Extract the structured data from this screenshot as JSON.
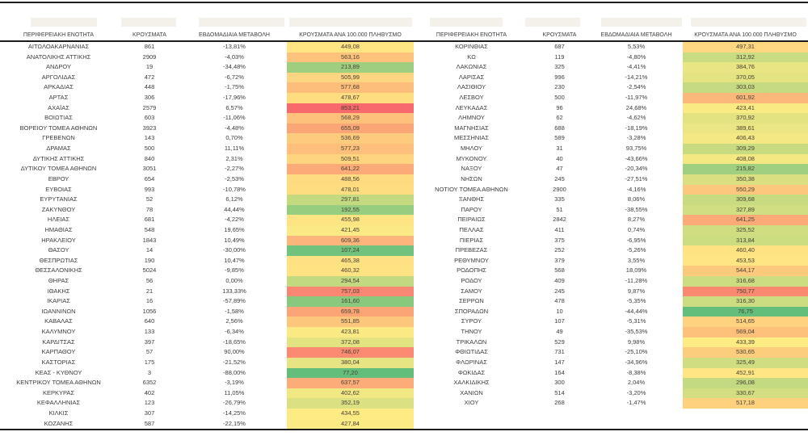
{
  "chart_data": {
    "type": "table",
    "title": "",
    "columns": [
      "ΠΕΡΙΦΕΡΕΙΑΚΗ ΕΝΟΤΗΤΑ",
      "ΚΡΟΥΣΜΑΤΑ",
      "ΕΒΔΟΜΑΔΙΑΙΑ ΜΕΤΑΒΟΛΗ",
      "ΚΡΟΥΣΜΑΤΑ ΑΝΑ 100.000 ΠΛΗΘΥΣΜΟ"
    ],
    "heat_column_index": 3,
    "color_scale": {
      "min_color": "#63BE7B",
      "mid_color": "#FFEB84",
      "max_color": "#F8696B",
      "midpoint_mode": "median"
    },
    "layout": {
      "split_at": 38,
      "two_panels": true,
      "grid": "none",
      "legend": "none"
    },
    "rows": [
      [
        "ΑΙΤΩΛΟΑΚΑΡΝΑΝΙΑΣ",
        "861",
        "-13,81%",
        "449,08"
      ],
      [
        "ΑΝΑΤΟΛΙΚΗΣ ΑΤΤΙΚΗΣ",
        "2909",
        "-4,03%",
        "563,16"
      ],
      [
        "ΑΝΔΡΟΥ",
        "19",
        "-34,48%",
        "213,89"
      ],
      [
        "ΑΡΓΟΛΙΔΑΣ",
        "472",
        "-6,72%",
        "505,99"
      ],
      [
        "ΑΡΚΑΔΙΑΣ",
        "448",
        "-1,75%",
        "577,68"
      ],
      [
        "ΑΡΤΑΣ",
        "306",
        "-17,96%",
        "478,67"
      ],
      [
        "ΑΧΑΪΑΣ",
        "2579",
        "6,57%",
        "853,21"
      ],
      [
        "ΒΟΙΩΤΙΑΣ",
        "603",
        "-11,06%",
        "568,29"
      ],
      [
        "ΒΟΡΕΙΟΥ ΤΟΜΕΑ ΑΘΗΝΩΝ",
        "3923",
        "-4,48%",
        "655,09"
      ],
      [
        "ΓΡΕΒΕΝΩΝ",
        "143",
        "0,70%",
        "536,69"
      ],
      [
        "ΔΡΑΜΑΣ",
        "500",
        "11,11%",
        "577,23"
      ],
      [
        "ΔΥΤΙΚΗΣ ΑΤΤΙΚΗΣ",
        "840",
        "2,31%",
        "509,51"
      ],
      [
        "ΔΥΤΙΚΟΥ ΤΟΜΕΑ ΑΘΗΝΩΝ",
        "3051",
        "-2,27%",
        "641,22"
      ],
      [
        "ΕΒΡΟΥ",
        "654",
        "-2,53%",
        "488,56"
      ],
      [
        "ΕΥΒΟΙΑΣ",
        "993",
        "-10,78%",
        "478,01"
      ],
      [
        "ΕΥΡΥΤΑΝΙΑΣ",
        "52",
        "6,12%",
        "297,81"
      ],
      [
        "ΖΑΚΥΝΘΟΥ",
        "78",
        "44,44%",
        "192,55"
      ],
      [
        "ΗΛΕΙΑΣ",
        "681",
        "-4,22%",
        "455,98"
      ],
      [
        "ΗΜΑΘΙΑΣ",
        "548",
        "19,65%",
        "421,45"
      ],
      [
        "ΗΡΑΚΛΕΙΟΥ",
        "1843",
        "10,49%",
        "609,36"
      ],
      [
        "ΘΑΣΟΥ",
        "14",
        "-30,00%",
        "107,24"
      ],
      [
        "ΘΕΣΠΡΩΤΙΑΣ",
        "190",
        "10,47%",
        "465,38"
      ],
      [
        "ΘΕΣΣΑΛΟΝΙΚΗΣ",
        "5024",
        "-9,85%",
        "460,32"
      ],
      [
        "ΘΗΡΑΣ",
        "56",
        "0,00%",
        "294,54"
      ],
      [
        "ΙΘΑΚΗΣ",
        "21",
        "133,33%",
        "757,03"
      ],
      [
        "ΙΚΑΡΙΑΣ",
        "16",
        "-57,89%",
        "161,60"
      ],
      [
        "ΙΩΑΝΝΙΝΩΝ",
        "1056",
        "-1,58%",
        "659,78"
      ],
      [
        "ΚΑΒΑΛΑΣ",
        "640",
        "2,56%",
        "551,85"
      ],
      [
        "ΚΑΛΥΜΝΟΥ",
        "133",
        "-6,34%",
        "423,81"
      ],
      [
        "ΚΑΡΔΙΤΣΑΣ",
        "397",
        "-18,65%",
        "372,08"
      ],
      [
        "ΚΑΡΠΑΘΟΥ",
        "57",
        "90,00%",
        "746,07"
      ],
      [
        "ΚΑΣΤΟΡΙΑΣ",
        "175",
        "-21,52%",
        "380,04"
      ],
      [
        "ΚΕΑΣ - ΚΥΘΝΟΥ",
        "3",
        "-88,00%",
        "77,20"
      ],
      [
        "ΚΕΝΤΡΙΚΟΥ ΤΟΜΕΑ ΑΘΗΝΩΝ",
        "6352",
        "-3,19%",
        "637,57"
      ],
      [
        "ΚΕΡΚΥΡΑΣ",
        "402",
        "11,05%",
        "402,62"
      ],
      [
        "ΚΕΦΑΛΛΗΝΙΑΣ",
        "123",
        "-26,79%",
        "352,19"
      ],
      [
        "ΚΙΛΚΙΣ",
        "307",
        "-14,25%",
        "434,55"
      ],
      [
        "ΚΟΖΑΝΗΣ",
        "587",
        "-22,15%",
        "427,84"
      ],
      [
        "ΚΟΡΙΝΘΙΑΣ",
        "687",
        "5,53%",
        "497,31"
      ],
      [
        "ΚΩ",
        "119",
        "-4,80%",
        "312,92"
      ],
      [
        "ΛΑΚΩΝΙΑΣ",
        "325",
        "-4,41%",
        "384,76"
      ],
      [
        "ΛΑΡΙΣΑΣ",
        "996",
        "-14,21%",
        "370,05"
      ],
      [
        "ΛΑΣΙΘΙΟΥ",
        "230",
        "-2,54%",
        "303,03"
      ],
      [
        "ΛΕΣΒΟΥ",
        "500",
        "-11,97%",
        "601,92"
      ],
      [
        "ΛΕΥΚΑΔΑΣ",
        "96",
        "24,68%",
        "423,41"
      ],
      [
        "ΛΗΜΝΟΥ",
        "62",
        "-4,62%",
        "370,92"
      ],
      [
        "ΜΑΓΝΗΣΙΑΣ",
        "688",
        "-18,19%",
        "389,61"
      ],
      [
        "ΜΕΣΣΗΝΙΑΣ",
        "589",
        "-3,28%",
        "406,43"
      ],
      [
        "ΜΗΛΟΥ",
        "31",
        "93,75%",
        "309,29"
      ],
      [
        "ΜΥΚΟΝΟΥ",
        "40",
        "-43,66%",
        "408,08"
      ],
      [
        "ΝΑΞΟΥ",
        "47",
        "-20,34%",
        "215,82"
      ],
      [
        "ΝΗΣΩΝ",
        "245",
        "-27,51%",
        "350,38"
      ],
      [
        "ΝΟΤΙΟΥ ΤΟΜΕΑ ΑΘΗΝΩΝ",
        "2900",
        "-4,16%",
        "550,29"
      ],
      [
        "ΞΑΝΘΗΣ",
        "335",
        "8,06%",
        "309,68"
      ],
      [
        "ΠΑΡΟΥ",
        "51",
        "-38,55%",
        "327,89"
      ],
      [
        "ΠΕΙΡΑΙΩΣ",
        "2842",
        "8,27%",
        "641,25"
      ],
      [
        "ΠΕΛΛΑΣ",
        "411",
        "0,74%",
        "325,52"
      ],
      [
        "ΠΙΕΡΙΑΣ",
        "375",
        "-6,95%",
        "313,84"
      ],
      [
        "ΠΡΕΒΕΖΑΣ",
        "252",
        "-5,26%",
        "460,40"
      ],
      [
        "ΡΕΘΥΜΝΟΥ",
        "379",
        "3,55%",
        "453,53"
      ],
      [
        "ΡΟΔΟΠΗΣ",
        "568",
        "18,09%",
        "544,17"
      ],
      [
        "ΡΟΔΟΥ",
        "409",
        "-11,28%",
        "316,68"
      ],
      [
        "ΣΑΜΟΥ",
        "245",
        "9,87%",
        "750,77"
      ],
      [
        "ΣΕΡΡΩΝ",
        "478",
        "-5,35%",
        "316,30"
      ],
      [
        "ΣΠΟΡΑΔΩΝ",
        "10",
        "-44,44%",
        "76,75"
      ],
      [
        "ΣΥΡΟΥ",
        "107",
        "-5,31%",
        "514,65"
      ],
      [
        "ΤΗΝΟΥ",
        "49",
        "-35,53%",
        "569,04"
      ],
      [
        "ΤΡΙΚΑΛΩΝ",
        "529",
        "9,98%",
        "433,39"
      ],
      [
        "ΦΘΙΩΤΙΔΑΣ",
        "731",
        "-25,10%",
        "530,65"
      ],
      [
        "ΦΛΩΡΙΝΑΣ",
        "147",
        "-34,96%",
        "325,49"
      ],
      [
        "ΦΩΚΙΔΑΣ",
        "164",
        "-8,38%",
        "452,91"
      ],
      [
        "ΧΑΛΚΙΔΙΚΗΣ",
        "300",
        "2,04%",
        "296,08"
      ],
      [
        "ΧΑΝΙΩΝ",
        "514",
        "-3,20%",
        "330,67"
      ],
      [
        "ΧΙΟΥ",
        "268",
        "-1,47%",
        "517,18"
      ]
    ]
  }
}
